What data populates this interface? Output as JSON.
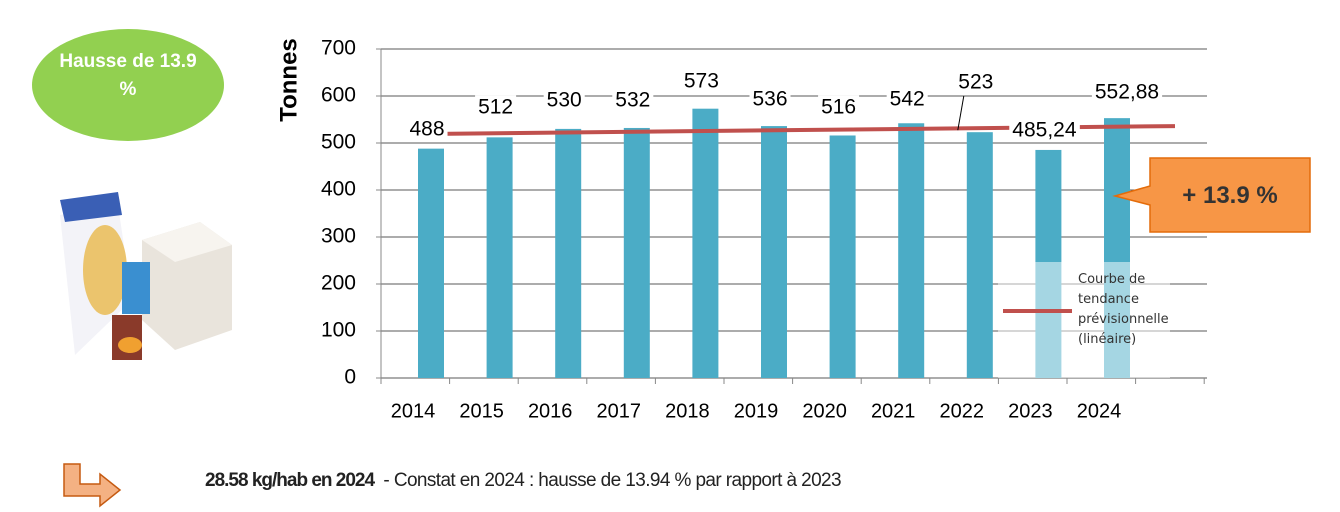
{
  "chart_data": {
    "type": "bar",
    "y_label": "Tonnes",
    "categories": [
      "2014",
      "2015",
      "2016",
      "2017",
      "2018",
      "2019",
      "2020",
      "2021",
      "2022",
      "2023",
      "2024"
    ],
    "values": [
      488,
      512,
      530,
      532,
      573,
      536,
      516,
      542,
      523,
      485.24,
      552.88
    ],
    "value_labels": [
      "488",
      "512",
      "530",
      "532",
      "573",
      "536",
      "516",
      "542",
      "523",
      "485,24",
      "552,88"
    ],
    "color": "#4bacc6",
    "ylim": [
      0,
      700
    ],
    "yticks": [
      0,
      100,
      200,
      300,
      400,
      500,
      600,
      700
    ],
    "grid": true,
    "trend": {
      "name": "Courbe de tendance prévisionnelle (linéaire)",
      "color": "#c0504d",
      "values": [
        519,
        536
      ]
    }
  },
  "badge": "Hausse de 13.9 %",
  "callout": "+ 13.9 %",
  "footer": {
    "bold": "28.58 kg/hab en 2024",
    "text": "- Constat en 2024 : hausse de 13.94 % par rapport à 2023"
  }
}
